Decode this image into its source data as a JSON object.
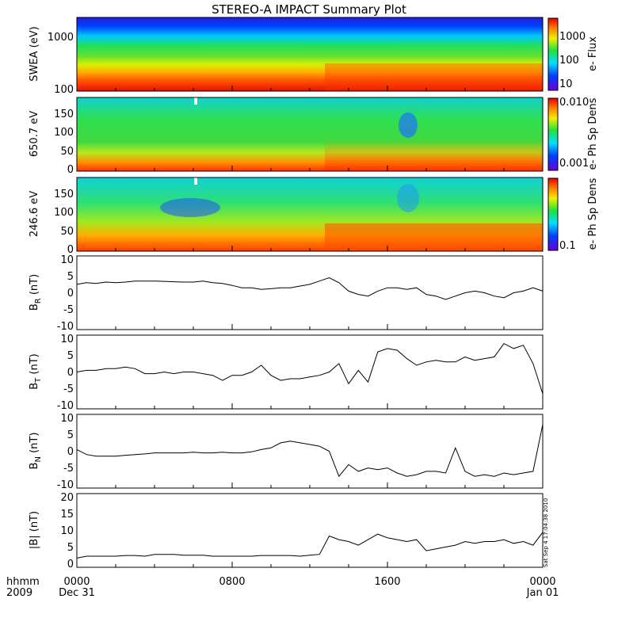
{
  "title": "STEREO-A IMPACT Summary Plot",
  "x_axis": {
    "ticks": [
      "0000",
      "0800",
      "1600",
      "0000"
    ],
    "row1_label": "hhmm",
    "row2_label": "2009",
    "start_date": "Dec 31",
    "end_date": "Jan 01"
  },
  "stamp": "Sat Sep  4 17:04:38 2010",
  "chart_data": [
    {
      "type": "heatmap",
      "ylabel": "SWEA (eV)",
      "yscale": "log",
      "ylim": [
        90,
        2000
      ],
      "yticks": [
        "1000",
        "100"
      ],
      "colorbar": {
        "label": "e- Flux",
        "scale": "log",
        "ticks": [
          "1000",
          "100",
          "10"
        ]
      }
    },
    {
      "type": "heatmap",
      "ylabel": "650.7 eV",
      "ylim": [
        0,
        180
      ],
      "yticks": [
        "150",
        "100",
        "50",
        "0"
      ],
      "colorbar": {
        "label": "e- Ph Sp Dens",
        "scale": "log",
        "ticks": [
          "0.010",
          "0.001"
        ]
      }
    },
    {
      "type": "heatmap",
      "ylabel": "246.6 eV",
      "ylim": [
        0,
        180
      ],
      "yticks": [
        "150",
        "100",
        "50",
        "0"
      ],
      "colorbar": {
        "label": "e- Ph Sp Dens",
        "scale": "log",
        "ticks": [
          "0.1"
        ]
      }
    },
    {
      "type": "line",
      "ylabel_main": "B",
      "ylabel_sub": "R",
      "ylabel_unit": " (nT)",
      "ylim": [
        -11,
        11
      ],
      "yticks": [
        "10",
        "5",
        "0",
        "-5",
        "-10"
      ],
      "x_hours": [
        0,
        0.5,
        1,
        1.5,
        2,
        2.5,
        3,
        3.5,
        4,
        4.5,
        5,
        5.5,
        6,
        6.5,
        7,
        7.5,
        8,
        8.5,
        9,
        9.5,
        10,
        10.5,
        11,
        11.5,
        12,
        12.5,
        13,
        13.5,
        14,
        14.5,
        15,
        15.5,
        16,
        16.5,
        17,
        17.5,
        18,
        18.5,
        19,
        19.5,
        20,
        20.5,
        21,
        21.5,
        22,
        22.5,
        23,
        23.5,
        24
      ],
      "values": [
        2.5,
        3,
        2.8,
        3.2,
        3,
        3.2,
        3.5,
        3.5,
        3.5,
        3.4,
        3.3,
        3.2,
        3.2,
        3.5,
        3.0,
        2.8,
        2.2,
        1.5,
        1.5,
        1.0,
        1.2,
        1.5,
        1.5,
        2.0,
        2.5,
        3.5,
        4.5,
        3.0,
        0.5,
        -0.5,
        -1.0,
        0.5,
        1.5,
        1.5,
        1.0,
        1.5,
        -0.5,
        -1.0,
        -2.0,
        -1.0,
        0,
        0.5,
        0,
        -1.0,
        -1.5,
        0,
        0.5,
        1.5,
        0.5
      ]
    },
    {
      "type": "line",
      "ylabel_main": "B",
      "ylabel_sub": "T",
      "ylabel_unit": " (nT)",
      "ylim": [
        -11,
        11
      ],
      "yticks": [
        "10",
        "5",
        "0",
        "-5",
        "-10"
      ],
      "x_hours": [
        0,
        0.5,
        1,
        1.5,
        2,
        2.5,
        3,
        3.5,
        4,
        4.5,
        5,
        5.5,
        6,
        6.5,
        7,
        7.5,
        8,
        8.5,
        9,
        9.5,
        10,
        10.5,
        11,
        11.5,
        12,
        12.5,
        13,
        13.5,
        14,
        14.5,
        15,
        15.5,
        16,
        16.5,
        17,
        17.5,
        18,
        18.5,
        19,
        19.5,
        20,
        20.5,
        21,
        21.5,
        22,
        22.5,
        23,
        23.5,
        24
      ],
      "values": [
        0,
        0.5,
        0.5,
        1.0,
        1.0,
        1.5,
        1.0,
        -0.5,
        -0.5,
        0,
        -0.5,
        0,
        0,
        -0.5,
        -1.0,
        -2.5,
        -1.0,
        -1.0,
        0,
        2.0,
        -1.0,
        -2.5,
        -2.0,
        -2.0,
        -1.5,
        -1.0,
        0,
        2.5,
        -3.5,
        0.5,
        -3.0,
        6.0,
        7.0,
        6.5,
        4.0,
        2.0,
        3.0,
        3.5,
        3.0,
        3.0,
        4.5,
        3.5,
        4.0,
        4.5,
        8.5,
        7.0,
        8.0,
        2.5,
        -6.5
      ]
    },
    {
      "type": "line",
      "ylabel_main": "B",
      "ylabel_sub": "N",
      "ylabel_unit": " (nT)",
      "ylim": [
        -11,
        11
      ],
      "yticks": [
        "10",
        "5",
        "0",
        "-5",
        "-10"
      ],
      "x_hours": [
        0,
        0.5,
        1,
        1.5,
        2,
        2.5,
        3,
        3.5,
        4,
        4.5,
        5,
        5.5,
        6,
        6.5,
        7,
        7.5,
        8,
        8.5,
        9,
        9.5,
        10,
        10.5,
        11,
        11.5,
        12,
        12.5,
        13,
        13.5,
        14,
        14.5,
        15,
        15.5,
        16,
        16.5,
        17,
        17.5,
        18,
        18.5,
        19,
        19.5,
        20,
        20.5,
        21,
        21.5,
        22,
        22.5,
        23,
        23.5,
        24
      ],
      "values": [
        0.5,
        -1.0,
        -1.5,
        -1.5,
        -1.5,
        -1.2,
        -1.0,
        -0.8,
        -0.5,
        -0.5,
        -0.5,
        -0.5,
        -0.3,
        -0.5,
        -0.5,
        -0.3,
        -0.5,
        -0.5,
        -0.2,
        0.5,
        1.0,
        2.5,
        3.0,
        2.5,
        2.0,
        1.5,
        0,
        -7.5,
        -4.0,
        -6.0,
        -5.0,
        -5.5,
        -5.0,
        -6.5,
        -7.5,
        -7.0,
        -6.0,
        -6.0,
        -6.5,
        1.0,
        -6.0,
        -7.5,
        -7.0,
        -7.5,
        -6.5,
        -7.0,
        -6.5,
        -6.0,
        8.0
      ]
    },
    {
      "type": "line",
      "ylabel_main": "|B|",
      "ylabel_sub": "",
      "ylabel_unit": " (nT)",
      "ylim": [
        0,
        20
      ],
      "yticks": [
        "20",
        "15",
        "10",
        "5",
        "0"
      ],
      "x_hours": [
        0,
        0.5,
        1,
        1.5,
        2,
        2.5,
        3,
        3.5,
        4,
        4.5,
        5,
        5.5,
        6,
        6.5,
        7,
        7.5,
        8,
        8.5,
        9,
        9.5,
        10,
        10.5,
        11,
        11.5,
        12,
        12.5,
        13,
        13.5,
        14,
        14.5,
        15,
        15.5,
        16,
        16.5,
        17,
        17.5,
        18,
        18.5,
        19,
        19.5,
        20,
        20.5,
        21,
        21.5,
        22,
        22.5,
        23,
        23.5,
        24
      ],
      "values": [
        2.5,
        3,
        3,
        3,
        3,
        3.2,
        3.2,
        3,
        3.5,
        3.5,
        3.5,
        3.3,
        3.3,
        3.3,
        3,
        3,
        3,
        3,
        3,
        3.2,
        3.2,
        3.2,
        3.2,
        3,
        3.3,
        3.5,
        8.5,
        7.5,
        7.0,
        6.0,
        7.5,
        9.0,
        8.0,
        7.5,
        7.0,
        7.5,
        4.5,
        5.0,
        5.5,
        6.0,
        7.0,
        6.5,
        7.0,
        7.0,
        7.5,
        6.5,
        7.0,
        6.0,
        9.5
      ]
    }
  ]
}
